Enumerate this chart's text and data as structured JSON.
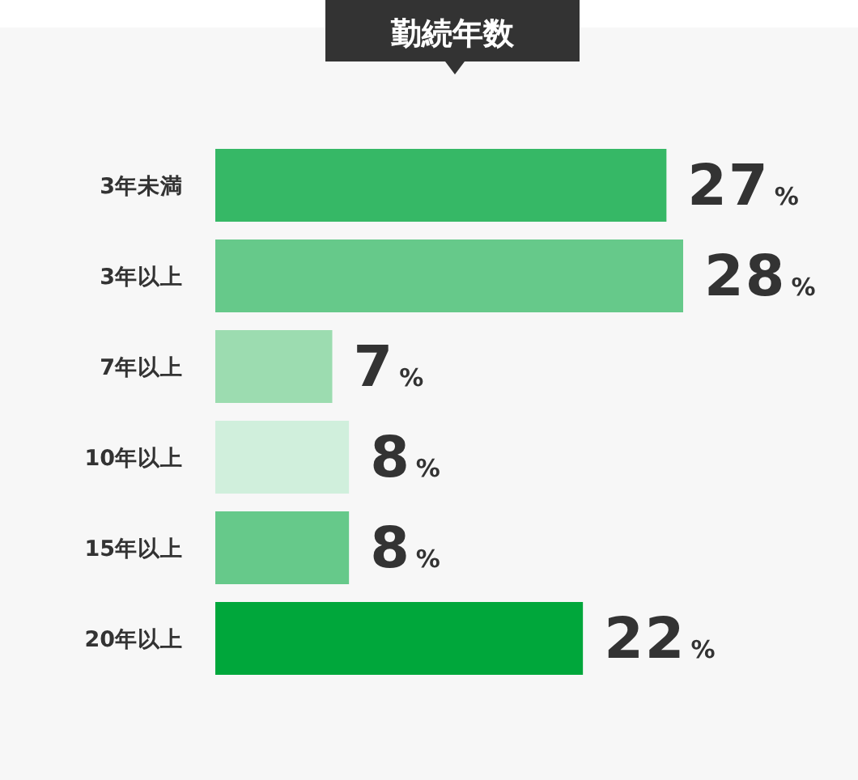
{
  "chart_data": {
    "type": "bar",
    "orientation": "horizontal",
    "title": "勤続年数",
    "categories": [
      "3年未満",
      "3年以上",
      "7年以上",
      "10年以上",
      "15年以上",
      "20年以上"
    ],
    "values": [
      27,
      28,
      7,
      8,
      8,
      22
    ],
    "colors": [
      "#36b866",
      "#66c98a",
      "#9cdcb0",
      "#d0efdc",
      "#66c98a",
      "#00a73b"
    ],
    "xlim": [
      0,
      28
    ],
    "value_labels": [
      "27%",
      "28%",
      "7%",
      "8%",
      "8%",
      "22%"
    ],
    "tick_labels": "y"
  }
}
